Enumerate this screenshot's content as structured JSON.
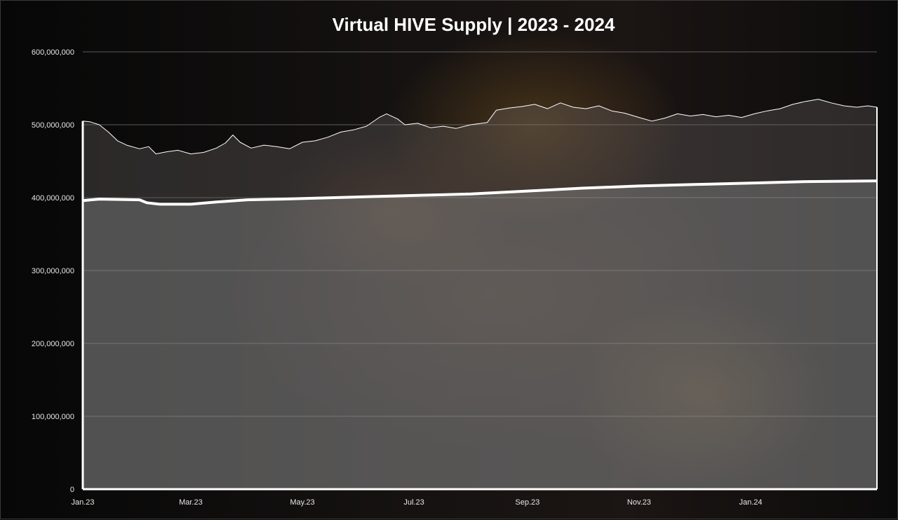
{
  "chart_data": {
    "type": "area",
    "title": "Virtual HIVE Supply | 2023 - 2024",
    "xlabel": "",
    "ylabel": "",
    "ylim": [
      0,
      600000000
    ],
    "yticks": [
      {
        "value": 0,
        "label": "0"
      },
      {
        "value": 100000000,
        "label": "100,000,000"
      },
      {
        "value": 200000000,
        "label": "200,000,000"
      },
      {
        "value": 300000000,
        "label": "300,000,000"
      },
      {
        "value": 400000000,
        "label": "400,000,000"
      },
      {
        "value": 500000000,
        "label": "500,000,000"
      },
      {
        "value": 600000000,
        "label": "600,000,000"
      }
    ],
    "xlim": [
      "2023-01-01",
      "2024-03-10"
    ],
    "xticks": [
      {
        "date": "2023-01-01",
        "label": "Jan.23"
      },
      {
        "date": "2023-03-01",
        "label": "Mar.23"
      },
      {
        "date": "2023-05-01",
        "label": "May.23"
      },
      {
        "date": "2023-07-01",
        "label": "Jul.23"
      },
      {
        "date": "2023-09-01",
        "label": "Sep.23"
      },
      {
        "date": "2023-11-01",
        "label": "Nov.23"
      },
      {
        "date": "2024-01-01",
        "label": "Jan.24"
      }
    ],
    "grid": true,
    "colors": {
      "background_area": "#8a8a8a",
      "line": "#ffffff",
      "grid": "#9a9a9a"
    },
    "series": [
      {
        "style": "thin-line",
        "points": [
          [
            "2023-01-01",
            505000000
          ],
          [
            "2023-01-05",
            504000000
          ],
          [
            "2023-01-10",
            500000000
          ],
          [
            "2023-01-15",
            490000000
          ],
          [
            "2023-01-20",
            478000000
          ],
          [
            "2023-01-25",
            472000000
          ],
          [
            "2023-02-01",
            467000000
          ],
          [
            "2023-02-06",
            470000000
          ],
          [
            "2023-02-10",
            460000000
          ],
          [
            "2023-02-16",
            463000000
          ],
          [
            "2023-02-22",
            465000000
          ],
          [
            "2023-03-01",
            460000000
          ],
          [
            "2023-03-08",
            462000000
          ],
          [
            "2023-03-15",
            468000000
          ],
          [
            "2023-03-20",
            475000000
          ],
          [
            "2023-03-24",
            486000000
          ],
          [
            "2023-03-28",
            476000000
          ],
          [
            "2023-04-03",
            468000000
          ],
          [
            "2023-04-10",
            472000000
          ],
          [
            "2023-04-17",
            470000000
          ],
          [
            "2023-04-24",
            467000000
          ],
          [
            "2023-05-01",
            476000000
          ],
          [
            "2023-05-08",
            478000000
          ],
          [
            "2023-05-15",
            483000000
          ],
          [
            "2023-05-22",
            490000000
          ],
          [
            "2023-05-29",
            493000000
          ],
          [
            "2023-06-05",
            498000000
          ],
          [
            "2023-06-12",
            510000000
          ],
          [
            "2023-06-16",
            515000000
          ],
          [
            "2023-06-22",
            508000000
          ],
          [
            "2023-06-26",
            500000000
          ],
          [
            "2023-07-03",
            502000000
          ],
          [
            "2023-07-10",
            496000000
          ],
          [
            "2023-07-17",
            498000000
          ],
          [
            "2023-07-24",
            495000000
          ],
          [
            "2023-08-01",
            500000000
          ],
          [
            "2023-08-10",
            503000000
          ],
          [
            "2023-08-15",
            520000000
          ],
          [
            "2023-08-22",
            523000000
          ],
          [
            "2023-08-29",
            525000000
          ],
          [
            "2023-09-05",
            528000000
          ],
          [
            "2023-09-12",
            522000000
          ],
          [
            "2023-09-19",
            530000000
          ],
          [
            "2023-09-26",
            524000000
          ],
          [
            "2023-10-03",
            522000000
          ],
          [
            "2023-10-10",
            526000000
          ],
          [
            "2023-10-17",
            519000000
          ],
          [
            "2023-10-24",
            516000000
          ],
          [
            "2023-11-01",
            510000000
          ],
          [
            "2023-11-08",
            505000000
          ],
          [
            "2023-11-15",
            509000000
          ],
          [
            "2023-11-22",
            515000000
          ],
          [
            "2023-11-29",
            512000000
          ],
          [
            "2023-12-06",
            514000000
          ],
          [
            "2023-12-13",
            511000000
          ],
          [
            "2023-12-20",
            513000000
          ],
          [
            "2023-12-27",
            510000000
          ],
          [
            "2024-01-03",
            515000000
          ],
          [
            "2024-01-10",
            519000000
          ],
          [
            "2024-01-17",
            522000000
          ],
          [
            "2024-01-24",
            528000000
          ],
          [
            "2024-01-31",
            532000000
          ],
          [
            "2024-02-07",
            535000000
          ],
          [
            "2024-02-14",
            530000000
          ],
          [
            "2024-02-21",
            526000000
          ],
          [
            "2024-02-28",
            524000000
          ],
          [
            "2024-03-05",
            526000000
          ],
          [
            "2024-03-10",
            524000000
          ]
        ]
      },
      {
        "style": "thick-line",
        "points": [
          [
            "2023-01-01",
            396000000
          ],
          [
            "2023-01-10",
            398000000
          ],
          [
            "2023-02-01",
            397000000
          ],
          [
            "2023-02-05",
            393000000
          ],
          [
            "2023-02-12",
            391000000
          ],
          [
            "2023-03-01",
            391000000
          ],
          [
            "2023-03-15",
            394000000
          ],
          [
            "2023-04-01",
            397000000
          ],
          [
            "2023-04-20",
            398000000
          ],
          [
            "2023-05-05",
            399000000
          ],
          [
            "2023-06-01",
            401000000
          ],
          [
            "2023-07-01",
            403000000
          ],
          [
            "2023-08-01",
            405000000
          ],
          [
            "2023-09-01",
            409000000
          ],
          [
            "2023-10-01",
            413000000
          ],
          [
            "2023-11-01",
            416000000
          ],
          [
            "2023-12-01",
            418000000
          ],
          [
            "2024-01-01",
            420000000
          ],
          [
            "2024-02-01",
            422000000
          ],
          [
            "2024-03-10",
            423000000
          ]
        ]
      }
    ]
  }
}
